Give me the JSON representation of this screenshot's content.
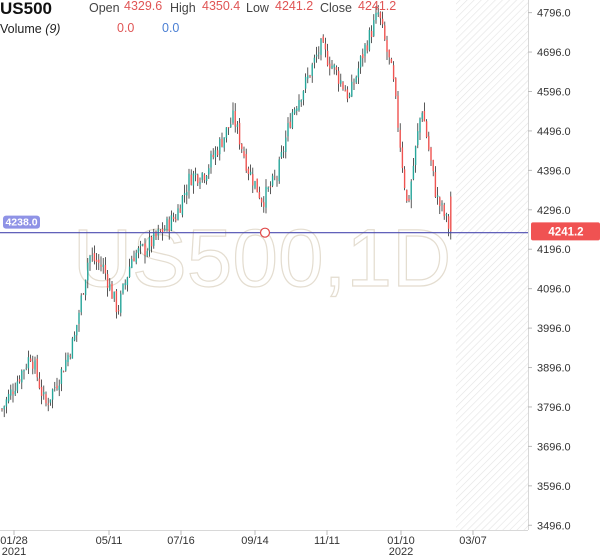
{
  "header": {
    "symbol": "US500",
    "open_label": "Open",
    "open_value": "4329.6",
    "high_label": "High",
    "high_value": "4350.4",
    "low_label": "Low",
    "low_value": "4241.2",
    "close_label": "Close",
    "close_value": "4241.2",
    "volume_label": "Volume",
    "volume_period": "(9)",
    "volume_value_1": "0.0",
    "volume_value_2": "0.0"
  },
  "watermark": "US500,1D",
  "crosshair_price": "4238.0",
  "last_price": "4241.2",
  "colors": {
    "up": "#26a69a",
    "down": "#ef5350",
    "wick": "#111111",
    "crosshair": "#4b4bb0",
    "crosshair_badge": "#8f93e6",
    "price_badge": "#f05252",
    "watermark": "#ece7dc"
  },
  "chart_data": {
    "type": "candlestick",
    "title": "US500,1D",
    "y_ticks": [
      3496.0,
      3596.0,
      3696.0,
      3796.0,
      3896.0,
      3996.0,
      4096.0,
      4196.0,
      4296.0,
      4396.0,
      4496.0,
      4596.0,
      4696.0,
      4796.0
    ],
    "ylim": [
      3484,
      4828
    ],
    "x_ticks": [
      {
        "label": "01/28",
        "sub": "2021"
      },
      {
        "label": "05/11",
        "sub": ""
      },
      {
        "label": "07/16",
        "sub": ""
      },
      {
        "label": "09/14",
        "sub": ""
      },
      {
        "label": "11/11",
        "sub": ""
      },
      {
        "label": "01/10",
        "sub": "2022"
      },
      {
        "label": "03/07",
        "sub": ""
      }
    ],
    "close_path": [
      [
        0,
        3790
      ],
      [
        1,
        3860
      ],
      [
        2,
        3930
      ],
      [
        3,
        3800
      ],
      [
        4,
        3875
      ],
      [
        5,
        3970
      ],
      [
        6,
        4180
      ],
      [
        7,
        4150
      ],
      [
        8,
        4040
      ],
      [
        9,
        4180
      ],
      [
        10,
        4200
      ],
      [
        11,
        4240
      ],
      [
        12,
        4280
      ],
      [
        13,
        4380
      ],
      [
        14,
        4390
      ],
      [
        15,
        4460
      ],
      [
        16,
        4530
      ],
      [
        17,
        4400
      ],
      [
        18,
        4320
      ],
      [
        19,
        4380
      ],
      [
        20,
        4540
      ],
      [
        21,
        4620
      ],
      [
        22,
        4710
      ],
      [
        23,
        4650
      ],
      [
        24,
        4580
      ],
      [
        25,
        4700
      ],
      [
        26,
        4795
      ],
      [
        27,
        4630
      ],
      [
        28,
        4300
      ],
      [
        29,
        4560
      ],
      [
        30,
        4330
      ],
      [
        31,
        4241.2
      ]
    ],
    "last": {
      "open": 4329.6,
      "high": 4350.4,
      "low": 4241.2,
      "close": 4241.2
    },
    "crosshair": 4238.0
  }
}
